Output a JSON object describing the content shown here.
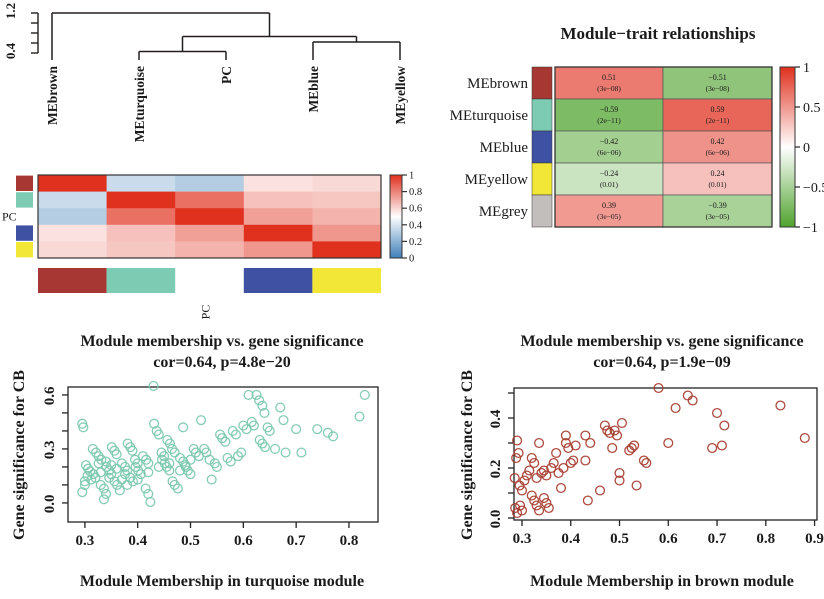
{
  "figure": {
    "background": "#ffffff"
  },
  "chart_data": [
    {
      "type": "dendrogram",
      "name": "eigengene-dendrogram",
      "leaves": [
        "MEbrown",
        "MEturquoise",
        "PC",
        "MEblue",
        "MEyellow"
      ],
      "merges": [
        {
          "children": [
            "L1",
            "L2"
          ],
          "height": 0.43
        },
        {
          "children": [
            "L3",
            "L4"
          ],
          "height": 0.62
        },
        {
          "children": [
            "M0",
            "M1"
          ],
          "height": 0.73
        },
        {
          "children": [
            "L0",
            "M2"
          ],
          "height": 1.2
        }
      ],
      "ylim": [
        0.4,
        1.2
      ],
      "axis_ticks": [
        0.4,
        0.6,
        0.8,
        1.0,
        1.2
      ],
      "axis_tick_labels": [
        {
          "value": 0.4,
          "label": "0.4"
        },
        {
          "value": 1.2,
          "label": "1.2"
        }
      ],
      "line_color": "#231f20"
    },
    {
      "type": "heatmap",
      "name": "eigengene-adjacency-heatmap",
      "side_modules": [
        {
          "name": "brown",
          "color": "#a63732"
        },
        {
          "name": "turquoise",
          "color": "#7ecbb4"
        },
        {
          "name": "PC",
          "color": null
        },
        {
          "name": "blue",
          "color": "#3f51a3"
        },
        {
          "name": "yellow",
          "color": "#f2e636"
        }
      ],
      "row_axis_label": "PC",
      "col_axis_label": "PC",
      "matrix": [
        [
          1.0,
          0.38,
          0.33,
          0.56,
          0.58
        ],
        [
          0.38,
          1.0,
          0.8,
          0.63,
          0.62
        ],
        [
          0.33,
          0.8,
          1.0,
          0.7,
          0.66
        ],
        [
          0.56,
          0.63,
          0.7,
          1.0,
          0.72
        ],
        [
          0.58,
          0.62,
          0.66,
          0.72,
          1.0
        ]
      ],
      "value_range": [
        0,
        1
      ],
      "colorbar_ticks": [
        "1",
        "0.8",
        "0.6",
        "0.4",
        "0.2",
        "0"
      ],
      "colors": {
        "high": "#e0301e",
        "mid": "#ffffff",
        "low": "#3f7fb8"
      }
    },
    {
      "type": "heatmap",
      "name": "module-trait-relationships",
      "title": "Module−trait relationships",
      "rows": [
        {
          "label": "MEbrown",
          "side_color": "#a63732",
          "cells": [
            {
              "value": 0.51,
              "value_text": "0.51",
              "p_text": "(3e−08)"
            },
            {
              "value": -0.51,
              "value_text": "−0.51",
              "p_text": "(3e−08)"
            }
          ]
        },
        {
          "label": "MEturquoise",
          "side_color": "#7ecbb4",
          "cells": [
            {
              "value": -0.59,
              "value_text": "−0.59",
              "p_text": "(2e−11)"
            },
            {
              "value": 0.59,
              "value_text": "0.59",
              "p_text": "(2e−11)"
            }
          ]
        },
        {
          "label": "MEblue",
          "side_color": "#3f51a3",
          "cells": [
            {
              "value": -0.42,
              "value_text": "−0.42",
              "p_text": "(6e−06)"
            },
            {
              "value": 0.42,
              "value_text": "0.42",
              "p_text": "(6e−06)"
            }
          ]
        },
        {
          "label": "MEyellow",
          "side_color": "#f2e636",
          "cells": [
            {
              "value": -0.24,
              "value_text": "−0.24",
              "p_text": "(0.01)"
            },
            {
              "value": 0.24,
              "value_text": "0.24",
              "p_text": "(0.01)"
            }
          ]
        },
        {
          "label": "MEgrey",
          "side_color": "#c2bebc",
          "cells": [
            {
              "value": 0.39,
              "value_text": "0.39",
              "p_text": "(3e−05)"
            },
            {
              "value": -0.39,
              "value_text": "−0.39",
              "p_text": "(3e−05)"
            }
          ]
        }
      ],
      "value_range": [
        -1,
        1
      ],
      "colorbar_ticks": [
        "1",
        "0.5",
        "0",
        "−0.5",
        "−1"
      ],
      "colors": {
        "high": "#e0301e",
        "mid": "#ffffff",
        "low": "#4fa32e"
      }
    },
    {
      "type": "scatter",
      "name": "mm-vs-gs-turquoise",
      "title": "Module membership vs. gene significance",
      "subtitle": "cor=0.64, p=4.8e−20",
      "xlabel": "Module Membership in turquoise module",
      "ylabel": "Gene significance for CB",
      "point_color": "#7bc8ae",
      "xlim": [
        0.268,
        0.855
      ],
      "ylim": [
        -0.106,
        0.644
      ],
      "xticks": [
        0.3,
        0.4,
        0.5,
        0.6,
        0.7,
        0.8
      ],
      "xtick_labels": [
        "0.3",
        "0.4",
        "0.5",
        "0.6",
        "0.7",
        "0.8"
      ],
      "yticks_minor": [
        0.0,
        0.1,
        0.2,
        0.3,
        0.4,
        0.5,
        0.6
      ],
      "yticks_labeled": [
        {
          "value": 0.0,
          "label": "0.0"
        },
        {
          "value": 0.3,
          "label": "0.3"
        },
        {
          "value": 0.6,
          "label": "0.6"
        }
      ],
      "points": [
        [
          0.295,
          0.44
        ],
        [
          0.297,
          0.42
        ],
        [
          0.3,
          0.12
        ],
        [
          0.3,
          0.1
        ],
        [
          0.295,
          0.06
        ],
        [
          0.302,
          0.21
        ],
        [
          0.306,
          0.19
        ],
        [
          0.31,
          0.175
        ],
        [
          0.305,
          0.15
        ],
        [
          0.312,
          0.13
        ],
        [
          0.316,
          0.16
        ],
        [
          0.32,
          0.14
        ],
        [
          0.315,
          0.3
        ],
        [
          0.321,
          0.28
        ],
        [
          0.326,
          0.26
        ],
        [
          0.331,
          0.24
        ],
        [
          0.326,
          0.22
        ],
        [
          0.33,
          0.1
        ],
        [
          0.336,
          0.08
        ],
        [
          0.34,
          0.05
        ],
        [
          0.336,
          0.02
        ],
        [
          0.341,
          0.2
        ],
        [
          0.346,
          0.18
        ],
        [
          0.35,
          0.16
        ],
        [
          0.346,
          0.14
        ],
        [
          0.351,
          0.31
        ],
        [
          0.356,
          0.29
        ],
        [
          0.36,
          0.27
        ],
        [
          0.356,
          0.12
        ],
        [
          0.361,
          0.1
        ],
        [
          0.366,
          0.07
        ],
        [
          0.37,
          0.22
        ],
        [
          0.376,
          0.2
        ],
        [
          0.38,
          0.18
        ],
        [
          0.376,
          0.16
        ],
        [
          0.381,
          0.33
        ],
        [
          0.386,
          0.31
        ],
        [
          0.39,
          0.29
        ],
        [
          0.386,
          0.14
        ],
        [
          0.391,
          0.12
        ],
        [
          0.395,
          0.24
        ],
        [
          0.4,
          0.22
        ],
        [
          0.396,
          0.2
        ],
        [
          0.401,
          0.18
        ],
        [
          0.406,
          0.16
        ],
        [
          0.41,
          0.26
        ],
        [
          0.416,
          0.24
        ],
        [
          0.42,
          0.22
        ],
        [
          0.415,
          0.08
        ],
        [
          0.42,
          0.05
        ],
        [
          0.424,
          0.005
        ],
        [
          0.43,
          0.65
        ],
        [
          0.431,
          0.44
        ],
        [
          0.436,
          0.4
        ],
        [
          0.44,
          0.38
        ],
        [
          0.445,
          0.28
        ],
        [
          0.45,
          0.26
        ],
        [
          0.446,
          0.24
        ],
        [
          0.451,
          0.22
        ],
        [
          0.455,
          0.2
        ],
        [
          0.46,
          0.18
        ],
        [
          0.456,
          0.35
        ],
        [
          0.461,
          0.33
        ],
        [
          0.465,
          0.3
        ],
        [
          0.47,
          0.28
        ],
        [
          0.466,
          0.12
        ],
        [
          0.47,
          0.1
        ],
        [
          0.476,
          0.08
        ],
        [
          0.48,
          0.25
        ],
        [
          0.486,
          0.23
        ],
        [
          0.49,
          0.21
        ],
        [
          0.486,
          0.42
        ],
        [
          0.491,
          0.2
        ],
        [
          0.495,
          0.18
        ],
        [
          0.5,
          0.16
        ],
        [
          0.506,
          0.3
        ],
        [
          0.51,
          0.28
        ],
        [
          0.516,
          0.26
        ],
        [
          0.52,
          0.46
        ],
        [
          0.526,
          0.3
        ],
        [
          0.53,
          0.28
        ],
        [
          0.536,
          0.24
        ],
        [
          0.54,
          0.13
        ],
        [
          0.546,
          0.22
        ],
        [
          0.55,
          0.2
        ],
        [
          0.556,
          0.38
        ],
        [
          0.56,
          0.36
        ],
        [
          0.566,
          0.34
        ],
        [
          0.57,
          0.25
        ],
        [
          0.576,
          0.23
        ],
        [
          0.58,
          0.4
        ],
        [
          0.586,
          0.38
        ],
        [
          0.59,
          0.26
        ],
        [
          0.596,
          0.28
        ],
        [
          0.6,
          0.43
        ],
        [
          0.606,
          0.41
        ],
        [
          0.61,
          0.6
        ],
        [
          0.616,
          0.45
        ],
        [
          0.62,
          0.43
        ],
        [
          0.625,
          0.6
        ],
        [
          0.63,
          0.57
        ],
        [
          0.636,
          0.54
        ],
        [
          0.64,
          0.5
        ],
        [
          0.631,
          0.35
        ],
        [
          0.636,
          0.33
        ],
        [
          0.641,
          0.31
        ],
        [
          0.646,
          0.42
        ],
        [
          0.65,
          0.4
        ],
        [
          0.66,
          0.3
        ],
        [
          0.67,
          0.53
        ],
        [
          0.676,
          0.46
        ],
        [
          0.68,
          0.28
        ],
        [
          0.7,
          0.41
        ],
        [
          0.71,
          0.28
        ],
        [
          0.74,
          0.41
        ],
        [
          0.76,
          0.39
        ],
        [
          0.77,
          0.37
        ],
        [
          0.82,
          0.48
        ],
        [
          0.83,
          0.6
        ],
        [
          0.34,
          0.23
        ],
        [
          0.36,
          0.19
        ],
        [
          0.38,
          0.1
        ],
        [
          0.4,
          0.13
        ],
        [
          0.42,
          0.17
        ],
        [
          0.44,
          0.2
        ],
        [
          0.46,
          0.22
        ],
        [
          0.48,
          0.18
        ],
        [
          0.5,
          0.24
        ],
        [
          0.33,
          0.17
        ],
        [
          0.35,
          0.21
        ],
        [
          0.37,
          0.13
        ]
      ]
    },
    {
      "type": "scatter",
      "name": "mm-vs-gs-brown",
      "title": "Module membership vs. gene significance",
      "subtitle": "cor=0.64, p=1.9e−09",
      "xlabel": "Module Membership in brown module",
      "ylabel": "Gene significance for CB",
      "point_color": "#a63c2e",
      "xlim": [
        0.2836,
        0.905
      ],
      "ylim": [
        -0.008,
        0.52
      ],
      "xticks": [
        0.3,
        0.4,
        0.5,
        0.6,
        0.7,
        0.8,
        0.9
      ],
      "xtick_labels": [
        "0.3",
        "0.4",
        "0.5",
        "0.6",
        "0.7",
        "0.8",
        "0.9"
      ],
      "yticks_minor": [
        0.0,
        0.1,
        0.2,
        0.3,
        0.4,
        0.5
      ],
      "yticks_labeled": [
        {
          "value": 0.0,
          "label": "0.0"
        },
        {
          "value": 0.2,
          "label": "0.2"
        },
        {
          "value": 0.4,
          "label": "0.4"
        }
      ],
      "points": [
        [
          0.285,
          0.16
        ],
        [
          0.288,
          0.24
        ],
        [
          0.29,
          0.31
        ],
        [
          0.286,
          0.04
        ],
        [
          0.29,
          0.02
        ],
        [
          0.293,
          0.26
        ],
        [
          0.295,
          0.13
        ],
        [
          0.3,
          0.11
        ],
        [
          0.296,
          0.05
        ],
        [
          0.3,
          0.03
        ],
        [
          0.305,
          0.15
        ],
        [
          0.31,
          0.17
        ],
        [
          0.315,
          0.19
        ],
        [
          0.32,
          0.24
        ],
        [
          0.325,
          0.22
        ],
        [
          0.32,
          0.09
        ],
        [
          0.325,
          0.07
        ],
        [
          0.33,
          0.05
        ],
        [
          0.335,
          0.03
        ],
        [
          0.33,
          0.16
        ],
        [
          0.335,
          0.3
        ],
        [
          0.34,
          0.18
        ],
        [
          0.345,
          0.19
        ],
        [
          0.35,
          0.17
        ],
        [
          0.345,
          0.08
        ],
        [
          0.35,
          0.06
        ],
        [
          0.355,
          0.04
        ],
        [
          0.36,
          0.2
        ],
        [
          0.365,
          0.22
        ],
        [
          0.37,
          0.26
        ],
        [
          0.375,
          0.18
        ],
        [
          0.38,
          0.12
        ],
        [
          0.385,
          0.2
        ],
        [
          0.39,
          0.33
        ],
        [
          0.39,
          0.3
        ],
        [
          0.395,
          0.28
        ],
        [
          0.4,
          0.22
        ],
        [
          0.405,
          0.23
        ],
        [
          0.41,
          0.29
        ],
        [
          0.43,
          0.33
        ],
        [
          0.43,
          0.23
        ],
        [
          0.435,
          0.07
        ],
        [
          0.44,
          0.3
        ],
        [
          0.46,
          0.11
        ],
        [
          0.47,
          0.37
        ],
        [
          0.475,
          0.35
        ],
        [
          0.48,
          0.34
        ],
        [
          0.485,
          0.28
        ],
        [
          0.49,
          0.35
        ],
        [
          0.495,
          0.33
        ],
        [
          0.5,
          0.15
        ],
        [
          0.5,
          0.18
        ],
        [
          0.505,
          0.38
        ],
        [
          0.52,
          0.27
        ],
        [
          0.525,
          0.28
        ],
        [
          0.53,
          0.29
        ],
        [
          0.535,
          0.13
        ],
        [
          0.55,
          0.23
        ],
        [
          0.555,
          0.22
        ],
        [
          0.58,
          0.52
        ],
        [
          0.6,
          0.3
        ],
        [
          0.615,
          0.44
        ],
        [
          0.64,
          0.49
        ],
        [
          0.65,
          0.47
        ],
        [
          0.69,
          0.28
        ],
        [
          0.7,
          0.42
        ],
        [
          0.71,
          0.29
        ],
        [
          0.715,
          0.37
        ],
        [
          0.83,
          0.45
        ],
        [
          0.88,
          0.32
        ]
      ]
    }
  ]
}
